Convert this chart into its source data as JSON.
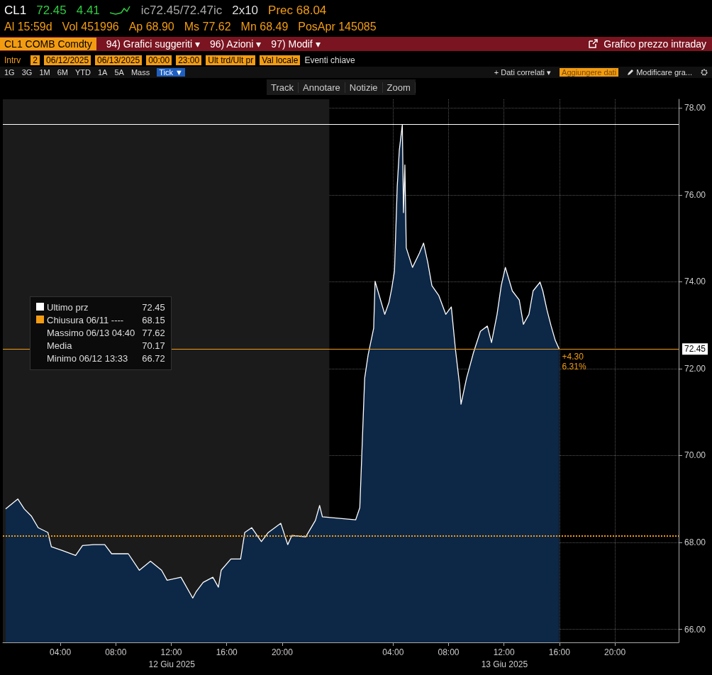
{
  "chart_data": {
    "type": "area",
    "title": "Grafico prezzo intraday",
    "subtitle": "CL1 COMB Comdty",
    "annotations": [
      "CL1",
      "72.45",
      "4.41",
      "ic72.45/72.47ic",
      "2x10",
      "Prec 68.04",
      "Al 15:59d",
      "Vol 451996",
      "Ap 68.90",
      "Ms 77.62",
      "Mn 68.49",
      "PosApr 145085",
      "94) Grafici suggeriti ▾",
      "96) Azioni ▾",
      "97) Modif ▾",
      "Intrv",
      "2",
      "06/12/2025",
      "06/13/2025",
      "00:00",
      "23:00",
      "Ult trd/Ult pr",
      "Val locale",
      "Eventi chiave",
      "1G",
      "3G",
      "1M",
      "6M",
      "YTD",
      "1A",
      "5A",
      "Mass",
      "Tick ▼",
      "+ Dati correlati ▾",
      "Aggiungere dati",
      "Modificare gra...",
      "Track",
      "Annotare",
      "Notizie",
      "Zoom",
      "72.45",
      "Chiusura 06/11 ----",
      "68.15",
      "Massimo 06/13 04:40",
      "77.62",
      "Media",
      "70.17",
      "Minimo 06/12 13:33",
      "66.72",
      "+4.30",
      "6.31%",
      "12 Giu 2025",
      "13 Giu 2025"
    ],
    "series": [
      {
        "name": "Ultimo prz",
        "color": "#ffffff",
        "x": [
          "2025-06-12T00:03",
          "2025-06-12T00:56",
          "2025-06-12T01:24",
          "2025-06-12T01:54",
          "2025-06-12T02:24",
          "2025-06-12T03:06",
          "2025-06-12T03:21",
          "2025-06-12T04:06",
          "2025-06-12T05:06",
          "2025-06-12T05:36",
          "2025-06-12T06:24",
          "2025-06-12T07:12",
          "2025-06-12T07:42",
          "2025-06-12T08:54",
          "2025-06-12T09:42",
          "2025-06-12T10:30",
          "2025-06-12T11:18",
          "2025-06-12T11:42",
          "2025-06-12T12:42",
          "2025-06-12T13:33",
          "2025-06-12T13:48",
          "2025-06-12T14:18",
          "2025-06-12T15:00",
          "2025-06-12T15:24",
          "2025-06-12T15:36",
          "2025-06-12T16:18",
          "2025-06-12T17:00",
          "2025-06-12T17:18",
          "2025-06-12T17:48",
          "2025-06-12T18:30",
          "2025-06-12T19:00",
          "2025-06-12T19:54",
          "2025-06-12T20:24",
          "2025-06-12T20:42",
          "2025-06-12T21:42",
          "2025-06-12T22:24",
          "2025-06-12T22:42",
          "2025-06-12T22:54",
          "2025-06-13T01:18",
          "2025-06-13T01:36",
          "2025-06-13T01:57",
          "2025-06-13T02:12",
          "2025-06-13T02:36",
          "2025-06-13T02:42",
          "2025-06-13T03:24",
          "2025-06-13T03:42",
          "2025-06-13T03:54",
          "2025-06-13T04:06",
          "2025-06-13T04:18",
          "2025-06-13T04:27",
          "2025-06-13T04:40",
          "2025-06-13T04:45",
          "2025-06-13T04:51",
          "2025-06-13T04:57",
          "2025-06-13T05:24",
          "2025-06-13T05:54",
          "2025-06-13T06:12",
          "2025-06-13T06:30",
          "2025-06-13T06:48",
          "2025-06-13T07:18",
          "2025-06-13T07:48",
          "2025-06-13T08:12",
          "2025-06-13T08:30",
          "2025-06-13T08:48",
          "2025-06-13T08:54",
          "2025-06-13T09:18",
          "2025-06-13T09:48",
          "2025-06-13T10:18",
          "2025-06-13T10:48",
          "2025-06-13T11:06",
          "2025-06-13T11:30",
          "2025-06-13T11:48",
          "2025-06-13T12:06",
          "2025-06-13T12:36",
          "2025-06-13T13:06",
          "2025-06-13T13:24",
          "2025-06-13T13:48",
          "2025-06-13T14:06",
          "2025-06-13T14:36",
          "2025-06-13T14:48",
          "2025-06-13T15:06",
          "2025-06-13T15:24",
          "2025-06-13T15:42",
          "2025-06-13T15:59"
        ],
        "values": [
          68.77,
          69.0,
          68.77,
          68.61,
          68.34,
          68.23,
          67.9,
          67.82,
          67.7,
          67.93,
          67.95,
          67.95,
          67.74,
          67.74,
          67.36,
          67.57,
          67.36,
          67.13,
          67.2,
          66.72,
          66.87,
          67.08,
          67.2,
          66.97,
          67.36,
          67.62,
          67.62,
          68.23,
          68.34,
          68.02,
          68.23,
          68.44,
          67.95,
          68.16,
          68.13,
          68.51,
          68.85,
          68.59,
          68.52,
          68.8,
          71.78,
          72.32,
          72.93,
          74.01,
          73.25,
          73.52,
          73.84,
          74.24,
          76.2,
          77.03,
          77.62,
          75.59,
          76.69,
          74.78,
          74.33,
          74.66,
          74.89,
          74.45,
          73.91,
          73.68,
          73.25,
          73.42,
          72.44,
          71.62,
          71.18,
          71.78,
          72.37,
          72.86,
          72.98,
          72.6,
          73.25,
          73.91,
          74.33,
          73.79,
          73.58,
          73.02,
          73.25,
          73.79,
          73.99,
          73.79,
          73.35,
          72.98,
          72.65,
          72.45
        ]
      }
    ],
    "xlim": [
      "2025-06-11T23:51",
      "2025-06-14T00:36"
    ],
    "xticks": [
      {
        "value": "2025-06-12T04:00",
        "label": "04:00"
      },
      {
        "value": "2025-06-12T08:00",
        "label": "08:00"
      },
      {
        "value": "2025-06-12T12:00",
        "label": "12:00"
      },
      {
        "value": "2025-06-12T16:00",
        "label": "16:00"
      },
      {
        "value": "2025-06-12T20:00",
        "label": "20:00"
      },
      {
        "value": "2025-06-13T04:00",
        "label": "04:00"
      },
      {
        "value": "2025-06-13T08:00",
        "label": "08:00"
      },
      {
        "value": "2025-06-13T12:00",
        "label": "12:00"
      },
      {
        "value": "2025-06-13T16:00",
        "label": "16:00"
      },
      {
        "value": "2025-06-13T20:00",
        "label": "20:00"
      }
    ],
    "ylim": [
      65.7,
      78.2
    ],
    "yticks": [
      {
        "value": 66,
        "label": "66.00"
      },
      {
        "value": 68,
        "label": "68.00"
      },
      {
        "value": 70,
        "label": "70.00"
      },
      {
        "value": 72,
        "label": "72.00"
      },
      {
        "value": 74,
        "label": "74.00"
      },
      {
        "value": 76,
        "label": "76.00"
      },
      {
        "value": 78,
        "label": "78.00"
      }
    ],
    "ref_lines": [
      {
        "axis": "y",
        "value": 68.15,
        "label": null,
        "color": "#f39c12",
        "line_style": "dotted"
      },
      {
        "axis": "y",
        "value": 77.62,
        "label": null,
        "color": "#ffffff",
        "line_style": "solid"
      },
      {
        "axis": "y",
        "value": 72.45,
        "label": "72.45",
        "color": "#f39c12",
        "line_style": "solid"
      }
    ],
    "bands": [
      {
        "axis": "x",
        "from": "2025-06-11T23:51",
        "to": "2025-06-12T23:24",
        "color": "#1b1b1b"
      }
    ],
    "grid": true,
    "legend": "left",
    "marker": "none",
    "line_style": "solid"
  }
}
